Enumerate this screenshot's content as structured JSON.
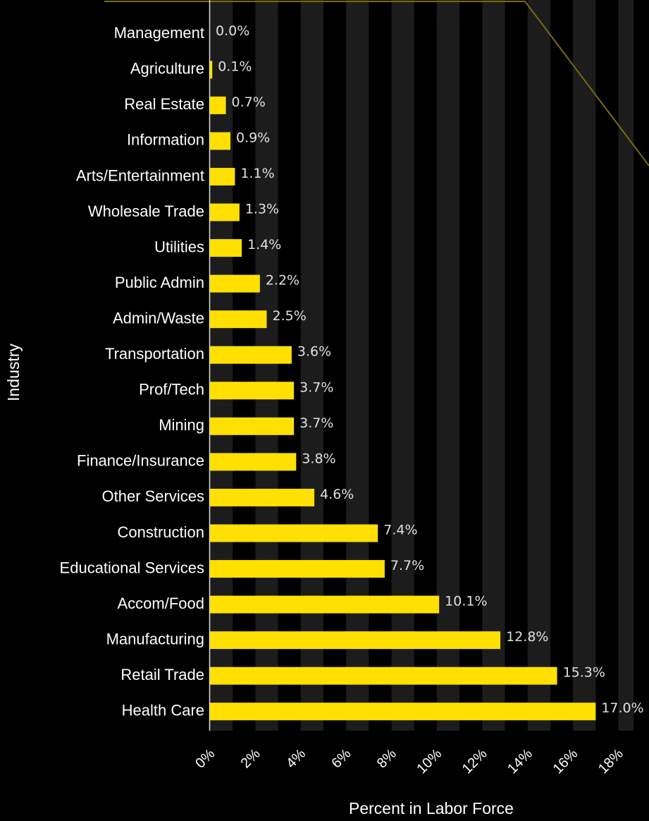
{
  "chart_data": {
    "type": "barh",
    "categories": [
      "Management",
      "Agriculture",
      "Real Estate",
      "Information",
      "Arts/Entertainment",
      "Wholesale Trade",
      "Utilities",
      "Public Admin",
      "Admin/Waste",
      "Transportation",
      "Prof/Tech",
      "Mining",
      "Finance/Insurance",
      "Other Services",
      "Construction",
      "Educational Services",
      "Accom/Food",
      "Manufacturing",
      "Retail Trade",
      "Health Care"
    ],
    "values": [
      0.0,
      0.1,
      0.7,
      0.9,
      1.1,
      1.3,
      1.4,
      2.2,
      2.5,
      3.6,
      3.7,
      3.7,
      3.8,
      4.6,
      7.4,
      7.7,
      10.1,
      12.8,
      15.3,
      17.0
    ],
    "value_labels": [
      "0.0%",
      "0.1%",
      "0.7%",
      "0.9%",
      "1.1%",
      "1.3%",
      "1.4%",
      "2.2%",
      "2.5%",
      "3.6%",
      "3.7%",
      "3.7%",
      "3.8%",
      "4.6%",
      "7.4%",
      "7.7%",
      "10.1%",
      "12.8%",
      "15.3%",
      "17.0%"
    ],
    "color": "#ffe000",
    "xlim": [
      0,
      19.35
    ],
    "xticks": [
      {
        "value": 0,
        "label": "0%"
      },
      {
        "value": 2,
        "label": "2%"
      },
      {
        "value": 4,
        "label": "4%"
      },
      {
        "value": 6,
        "label": "6%"
      },
      {
        "value": 8,
        "label": "8%"
      },
      {
        "value": 10,
        "label": "10%"
      },
      {
        "value": 12,
        "label": "12%"
      },
      {
        "value": 14,
        "label": "14%"
      },
      {
        "value": 16,
        "label": "16%"
      },
      {
        "value": 18,
        "label": "18%"
      }
    ],
    "xlabel": "Percent in Labor Force",
    "ylabel": "Industry"
  }
}
